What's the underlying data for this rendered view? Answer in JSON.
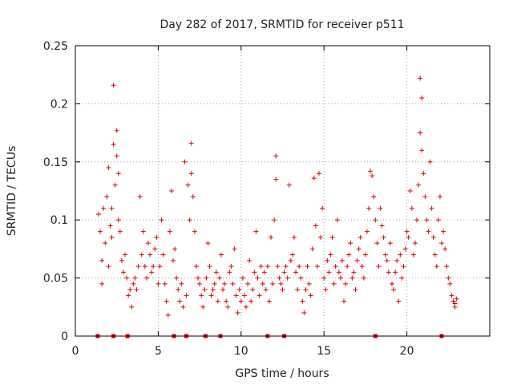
{
  "chart_data": {
    "type": "scatter",
    "title": "Day 282 of 2017, SRMTID for receiver p511",
    "xlabel": "GPS time / hours",
    "ylabel": "SRMTID / TECUs",
    "xlim": [
      0,
      25
    ],
    "ylim": [
      0,
      0.25
    ],
    "x_ticks": [
      0,
      5,
      10,
      15,
      20
    ],
    "y_ticks": [
      0,
      0.05,
      0.1,
      0.15,
      0.2,
      0.25
    ],
    "x_tick_labels": [
      "0",
      "5",
      "10",
      "15",
      "20"
    ],
    "y_tick_labels": [
      "0",
      "0.05",
      "0.1",
      "0.15",
      "0.2",
      "0.25"
    ],
    "grid": true,
    "marker": "+",
    "series": [
      {
        "name": "SRMTID",
        "color": "#e00000",
        "points": [
          [
            1.4,
            0.105
          ],
          [
            1.5,
            0.09
          ],
          [
            1.6,
            0.065
          ],
          [
            1.6,
            0.045
          ],
          [
            1.7,
            0.11
          ],
          [
            1.8,
            0.08
          ],
          [
            1.9,
            0.12
          ],
          [
            2.0,
            0.145
          ],
          [
            2.0,
            0.06
          ],
          [
            2.1,
            0.095
          ],
          [
            2.2,
            0.11
          ],
          [
            2.2,
            0.085
          ],
          [
            2.3,
            0.216
          ],
          [
            2.3,
            0.165
          ],
          [
            2.4,
            0.13
          ],
          [
            2.5,
            0.177
          ],
          [
            2.5,
            0.155
          ],
          [
            2.6,
            0.14
          ],
          [
            2.6,
            0.1
          ],
          [
            2.7,
            0.09
          ],
          [
            2.8,
            0.065
          ],
          [
            2.9,
            0.055
          ],
          [
            3.0,
            0.07
          ],
          [
            3.1,
            0.05
          ],
          [
            3.2,
            0.035
          ],
          [
            3.3,
            0.04
          ],
          [
            3.4,
            0.025
          ],
          [
            3.5,
            0.045
          ],
          [
            3.6,
            0.05
          ],
          [
            3.7,
            0.04
          ],
          [
            3.8,
            0.06
          ],
          [
            3.9,
            0.12
          ],
          [
            4.0,
            0.07
          ],
          [
            4.1,
            0.09
          ],
          [
            4.2,
            0.06
          ],
          [
            4.3,
            0.05
          ],
          [
            4.4,
            0.08
          ],
          [
            4.5,
            0.07
          ],
          [
            4.6,
            0.055
          ],
          [
            4.7,
            0.06
          ],
          [
            4.8,
            0.075
          ],
          [
            4.9,
            0.085
          ],
          [
            5.0,
            0.045
          ],
          [
            5.1,
            0.06
          ],
          [
            5.2,
            0.1
          ],
          [
            5.3,
            0.07
          ],
          [
            5.4,
            0.045
          ],
          [
            5.5,
            0.03
          ],
          [
            5.6,
            0.018
          ],
          [
            5.7,
            0.09
          ],
          [
            5.8,
            0.125
          ],
          [
            5.9,
            0.065
          ],
          [
            6.0,
            0.075
          ],
          [
            6.1,
            0.05
          ],
          [
            6.2,
            0.04
          ],
          [
            6.3,
            0.03
          ],
          [
            6.4,
            0.045
          ],
          [
            6.5,
            0.025
          ],
          [
            6.6,
            0.15
          ],
          [
            6.7,
            0.035
          ],
          [
            6.8,
            0.13
          ],
          [
            6.9,
            0.1
          ],
          [
            7.0,
            0.166
          ],
          [
            7.0,
            0.14
          ],
          [
            7.1,
            0.12
          ],
          [
            7.2,
            0.09
          ],
          [
            7.3,
            0.06
          ],
          [
            7.4,
            0.05
          ],
          [
            7.5,
            0.045
          ],
          [
            7.6,
            0.035
          ],
          [
            7.7,
            0.025
          ],
          [
            7.8,
            0.04
          ],
          [
            7.9,
            0.05
          ],
          [
            8.0,
            0.08
          ],
          [
            8.1,
            0.06
          ],
          [
            8.2,
            0.035
          ],
          [
            8.3,
            0.04
          ],
          [
            8.4,
            0.045
          ],
          [
            8.5,
            0.055
          ],
          [
            8.6,
            0.03
          ],
          [
            8.7,
            0.05
          ],
          [
            8.8,
            0.07
          ],
          [
            8.9,
            0.04
          ],
          [
            9.0,
            0.045
          ],
          [
            9.1,
            0.03
          ],
          [
            9.2,
            0.025
          ],
          [
            9.3,
            0.055
          ],
          [
            9.4,
            0.06
          ],
          [
            9.5,
            0.045
          ],
          [
            9.6,
            0.075
          ],
          [
            9.7,
            0.035
          ],
          [
            9.8,
            0.02
          ],
          [
            9.9,
            0.04
          ],
          [
            10.0,
            0.03
          ],
          [
            10.1,
            0.05
          ],
          [
            10.2,
            0.035
          ],
          [
            10.3,
            0.025
          ],
          [
            10.4,
            0.045
          ],
          [
            10.5,
            0.065
          ],
          [
            10.6,
            0.03
          ],
          [
            10.7,
            0.04
          ],
          [
            10.8,
            0.055
          ],
          [
            10.9,
            0.09
          ],
          [
            11.0,
            0.05
          ],
          [
            11.1,
            0.035
          ],
          [
            11.2,
            0.06
          ],
          [
            11.3,
            0.045
          ],
          [
            11.4,
            0.055
          ],
          [
            11.5,
            0.04
          ],
          [
            11.6,
            0.06
          ],
          [
            11.7,
            0.03
          ],
          [
            11.8,
            0.085
          ],
          [
            11.9,
            0.045
          ],
          [
            12.0,
            0.1
          ],
          [
            12.1,
            0.155
          ],
          [
            12.1,
            0.135
          ],
          [
            12.2,
            0.06
          ],
          [
            12.3,
            0.05
          ],
          [
            12.4,
            0.045
          ],
          [
            12.5,
            0.04
          ],
          [
            12.6,
            0.055
          ],
          [
            12.7,
            0.06
          ],
          [
            12.8,
            0.05
          ],
          [
            12.9,
            0.13
          ],
          [
            13.0,
            0.065
          ],
          [
            13.1,
            0.07
          ],
          [
            13.2,
            0.085
          ],
          [
            13.3,
            0.055
          ],
          [
            13.4,
            0.04
          ],
          [
            13.5,
            0.06
          ],
          [
            13.6,
            0.05
          ],
          [
            13.7,
            0.03
          ],
          [
            13.8,
            0.02
          ],
          [
            13.9,
            0.04
          ],
          [
            14.0,
            0.06
          ],
          [
            14.1,
            0.045
          ],
          [
            14.2,
            0.035
          ],
          [
            14.3,
            0.075
          ],
          [
            14.4,
            0.136
          ],
          [
            14.5,
            0.095
          ],
          [
            14.6,
            0.06
          ],
          [
            14.7,
            0.14
          ],
          [
            14.8,
            0.085
          ],
          [
            14.9,
            0.11
          ],
          [
            15.0,
            0.05
          ],
          [
            15.1,
            0.04
          ],
          [
            15.2,
            0.065
          ],
          [
            15.3,
            0.055
          ],
          [
            15.4,
            0.07
          ],
          [
            15.5,
            0.085
          ],
          [
            15.6,
            0.045
          ],
          [
            15.7,
            0.06
          ],
          [
            15.8,
            0.1
          ],
          [
            15.9,
            0.055
          ],
          [
            16.0,
            0.05
          ],
          [
            16.1,
            0.065
          ],
          [
            16.2,
            0.03
          ],
          [
            16.3,
            0.045
          ],
          [
            16.4,
            0.06
          ],
          [
            16.5,
            0.07
          ],
          [
            16.6,
            0.08
          ],
          [
            16.7,
            0.05
          ],
          [
            16.8,
            0.055
          ],
          [
            16.9,
            0.04
          ],
          [
            17.0,
            0.065
          ],
          [
            17.1,
            0.075
          ],
          [
            17.2,
            0.085
          ],
          [
            17.3,
            0.06
          ],
          [
            17.4,
            0.05
          ],
          [
            17.5,
            0.07
          ],
          [
            17.6,
            0.09
          ],
          [
            17.7,
            0.11
          ],
          [
            17.8,
            0.142
          ],
          [
            17.9,
            0.138
          ],
          [
            18.0,
            0.12
          ],
          [
            18.1,
            0.1
          ],
          [
            18.2,
            0.08
          ],
          [
            18.3,
            0.06
          ],
          [
            18.4,
            0.11
          ],
          [
            18.5,
            0.095
          ],
          [
            18.6,
            0.085
          ],
          [
            18.7,
            0.07
          ],
          [
            18.8,
            0.065
          ],
          [
            18.9,
            0.055
          ],
          [
            19.0,
            0.08
          ],
          [
            19.1,
            0.045
          ],
          [
            19.2,
            0.04
          ],
          [
            19.3,
            0.055
          ],
          [
            19.4,
            0.065
          ],
          [
            19.5,
            0.03
          ],
          [
            19.6,
            0.07
          ],
          [
            19.7,
            0.05
          ],
          [
            19.8,
            0.06
          ],
          [
            19.9,
            0.075
          ],
          [
            20.0,
            0.09
          ],
          [
            20.1,
            0.085
          ],
          [
            20.2,
            0.125
          ],
          [
            20.3,
            0.11
          ],
          [
            20.4,
            0.07
          ],
          [
            20.5,
            0.08
          ],
          [
            20.6,
            0.1
          ],
          [
            20.7,
            0.13
          ],
          [
            20.8,
            0.175
          ],
          [
            20.8,
            0.222
          ],
          [
            20.9,
            0.205
          ],
          [
            20.9,
            0.16
          ],
          [
            21.0,
            0.14
          ],
          [
            21.1,
            0.12
          ],
          [
            21.2,
            0.1
          ],
          [
            21.3,
            0.09
          ],
          [
            21.4,
            0.15
          ],
          [
            21.5,
            0.11
          ],
          [
            21.6,
            0.085
          ],
          [
            21.7,
            0.07
          ],
          [
            21.8,
            0.06
          ],
          [
            21.9,
            0.1
          ],
          [
            22.0,
            0.12
          ],
          [
            22.1,
            0.08
          ],
          [
            22.2,
            0.09
          ],
          [
            22.3,
            0.075
          ],
          [
            22.4,
            0.06
          ],
          [
            22.5,
            0.05
          ],
          [
            22.6,
            0.045
          ],
          [
            22.7,
            0.035
          ],
          [
            22.8,
            0.03
          ],
          [
            22.9,
            0.028
          ],
          [
            22.9,
            0.025
          ],
          [
            23.0,
            0.032
          ]
        ]
      }
    ],
    "data_gap_markers": {
      "color": "#e00000",
      "y": 0,
      "x": [
        1.35,
        2.3,
        3.15,
        5.95,
        6.7,
        7.85,
        8.75,
        11.6,
        12.6,
        18.1,
        22.1
      ]
    }
  }
}
